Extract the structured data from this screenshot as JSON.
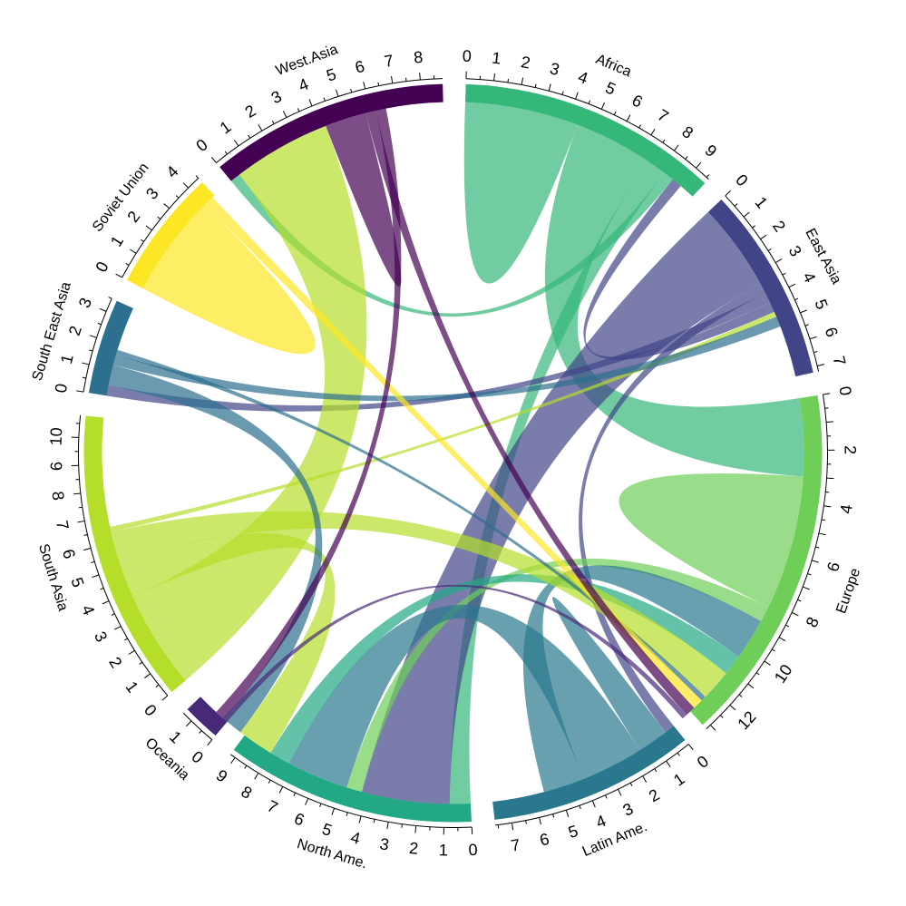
{
  "chart_data": {
    "type": "chord",
    "title": "",
    "regions": [
      {
        "name": "Africa",
        "label": "Africa",
        "total": 9.6,
        "color": "#35b779"
      },
      {
        "name": "East Asia",
        "label": "East Asia",
        "total": 7.2,
        "color": "#414487"
      },
      {
        "name": "Europe",
        "label": "Europe",
        "total": 13.2,
        "color": "#6ece58"
      },
      {
        "name": "Latin Ame.",
        "label": "Latin Ame.",
        "total": 7.6,
        "color": "#2a788e"
      },
      {
        "name": "North Ame.",
        "label": "North Ame.",
        "total": 9.2,
        "color": "#22a884"
      },
      {
        "name": "Oceania",
        "label": "Oceania",
        "total": 1.4,
        "color": "#482878"
      },
      {
        "name": "South Asia",
        "label": "South Asia",
        "total": 10.8,
        "color": "#b5de2b"
      },
      {
        "name": "South East Asia",
        "label": "South East Asia",
        "total": 3.5,
        "color": "#2c6f8e"
      },
      {
        "name": "Soviet Union",
        "label": "Soviet Union",
        "total": 4.5,
        "color": "#fde725"
      },
      {
        "name": "West.Asia",
        "label": "West.Asia",
        "total": 8.8,
        "color": "#440154"
      }
    ],
    "flows": [
      {
        "from": "Africa",
        "to": "Africa",
        "value": 2.2
      },
      {
        "from": "Africa",
        "to": "Europe",
        "value": 3.0
      },
      {
        "from": "Africa",
        "to": "North Ame.",
        "value": 0.8
      },
      {
        "from": "Africa",
        "to": "West.Asia",
        "value": 0.4
      },
      {
        "from": "East Asia",
        "to": "North Ame.",
        "value": 3.4
      },
      {
        "from": "East Asia",
        "to": "Latin Ame.",
        "value": 0.4
      },
      {
        "from": "East Asia",
        "to": "South East Asia",
        "value": 0.4
      },
      {
        "from": "East Asia",
        "to": "Africa",
        "value": 0.4
      },
      {
        "from": "Europe",
        "to": "Europe",
        "value": 2.6
      },
      {
        "from": "Europe",
        "to": "North Ame.",
        "value": 0.6
      },
      {
        "from": "Latin Ame.",
        "to": "Latin Ame.",
        "value": 0.6
      },
      {
        "from": "Latin Ame.",
        "to": "North Ame.",
        "value": 2.4
      },
      {
        "from": "Latin Ame.",
        "to": "Europe",
        "value": 1.6
      },
      {
        "from": "North Ame.",
        "to": "Europe",
        "value": 0.8
      },
      {
        "from": "South Asia",
        "to": "West.Asia",
        "value": 3.8
      },
      {
        "from": "South Asia",
        "to": "North Ame.",
        "value": 1.4
      },
      {
        "from": "South Asia",
        "to": "Europe",
        "value": 1.2
      },
      {
        "from": "South Asia",
        "to": "East Asia",
        "value": 0.2
      },
      {
        "from": "South East Asia",
        "to": "North Ame.",
        "value": 0.8
      },
      {
        "from": "South East Asia",
        "to": "East Asia",
        "value": 0.4
      },
      {
        "from": "South East Asia",
        "to": "Europe",
        "value": 0.2
      },
      {
        "from": "Soviet Union",
        "to": "Soviet Union",
        "value": 2.0
      },
      {
        "from": "Soviet Union",
        "to": "Europe",
        "value": 0.4
      },
      {
        "from": "West.Asia",
        "to": "West.Asia",
        "value": 0.8
      },
      {
        "from": "West.Asia",
        "to": "Europe",
        "value": 0.4
      },
      {
        "from": "West.Asia",
        "to": "North Ame.",
        "value": 0.4
      },
      {
        "from": "Oceania",
        "to": "Europe",
        "value": 0.2
      }
    ]
  }
}
